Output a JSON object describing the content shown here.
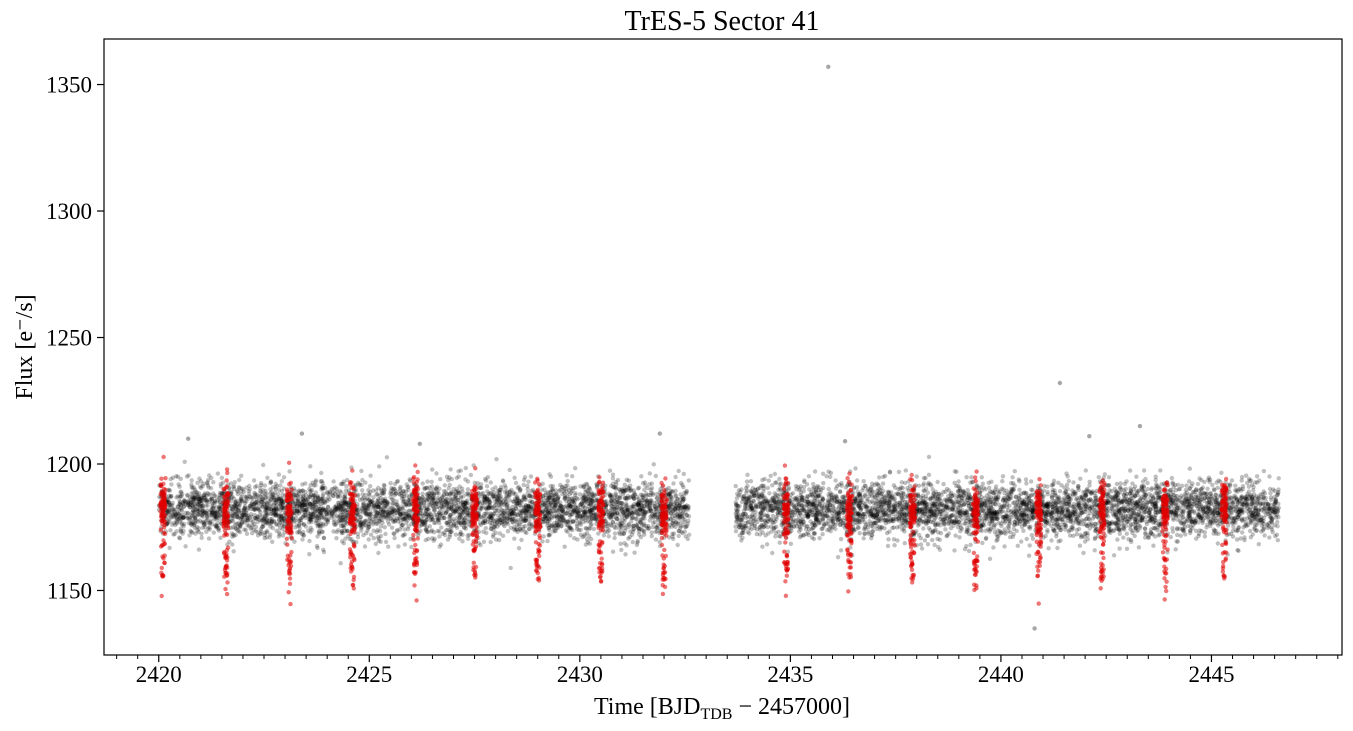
{
  "chart_data": {
    "type": "scatter",
    "title": "TrES-5 Sector 41",
    "xlabel": {
      "prefix": "Time [BJD",
      "subscript": "TDB",
      "suffix": " − 2457000]"
    },
    "ylabel": "Flux [e⁻/s]",
    "xlim": [
      2418.7,
      2448.1
    ],
    "ylim": [
      1124.5,
      1368
    ],
    "xticks": [
      2420,
      2425,
      2430,
      2435,
      2440,
      2445
    ],
    "xtick_labels": [
      "2420",
      "2425",
      "2430",
      "2435",
      "2440",
      "2445"
    ],
    "yticks": [
      1150,
      1200,
      1250,
      1300,
      1350
    ],
    "ytick_labels": [
      "1150",
      "1200",
      "1250",
      "1300",
      "1350"
    ],
    "x_minor_step": 0.5,
    "grid": false,
    "series": [
      {
        "color": "#000000",
        "opacity": 0.25,
        "baseline_flux": 1182,
        "scatter_std": 5.5,
        "x_ranges": [
          [
            2420.0,
            2432.6
          ],
          [
            2433.7,
            2446.6
          ]
        ],
        "outliers": [
          {
            "x": 2435.9,
            "y": 1357
          },
          {
            "x": 2441.4,
            "y": 1232
          },
          {
            "x": 2443.3,
            "y": 1215
          },
          {
            "x": 2431.9,
            "y": 1212
          },
          {
            "x": 2423.4,
            "y": 1212
          },
          {
            "x": 2440.8,
            "y": 1135
          },
          {
            "x": 2420.7,
            "y": 1210
          },
          {
            "x": 2442.1,
            "y": 1211
          },
          {
            "x": 2426.2,
            "y": 1208
          },
          {
            "x": 2436.3,
            "y": 1209
          }
        ]
      },
      {
        "color": "#e00000",
        "opacity": 0.55,
        "transit_depth": 23,
        "transit_centers": [
          2420.1,
          2421.6,
          2423.1,
          2424.6,
          2426.1,
          2427.5,
          2429.0,
          2430.5,
          2432.0,
          2434.9,
          2436.4,
          2437.9,
          2439.4,
          2440.9,
          2442.4,
          2443.9,
          2445.3
        ]
      }
    ]
  }
}
